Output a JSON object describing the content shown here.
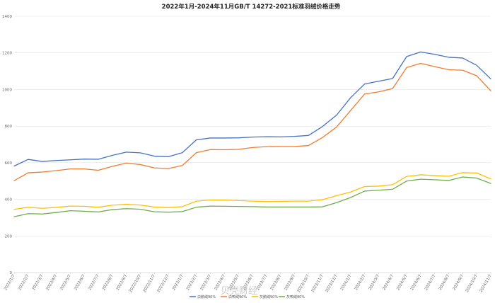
{
  "chart_data": {
    "type": "line",
    "title": "2022年1月-2024年11月GB/T 14272-2021标准羽绒价格走势",
    "ylim": [
      0,
      1400
    ],
    "yticks": [
      0,
      200,
      400,
      600,
      800,
      1000,
      1200,
      1400
    ],
    "grid": "horizontal",
    "legend_position": "bottom",
    "x": [
      "2022/1/7",
      "2022/2/7",
      "2022/3/7",
      "2022/4/7",
      "2022/5/7",
      "2022/6/7",
      "2022/7/7",
      "2022/8/7",
      "2022/9/7",
      "2022/10/7",
      "2022/11/7",
      "2022/12/7",
      "2023/1/7",
      "2023/2/7",
      "2023/3/7",
      "2023/4/7",
      "2023/5/7",
      "2023/6/7",
      "2023/7/7",
      "2023/8/7",
      "2023/9/7",
      "2023/10/7",
      "2023/11/7",
      "2023/12/7",
      "2024/1/7",
      "2024/2/7",
      "2024/3/7",
      "2024/4/7",
      "2024/5/7",
      "2024/6/7",
      "2024/7/7",
      "2024/8/7",
      "2024/9/7",
      "2024/10/7",
      "2024/11/7"
    ],
    "series": [
      {
        "name": "白鹅绒90%",
        "color": "#4472c4",
        "values": [
          582,
          618,
          607,
          612,
          616,
          620,
          619,
          640,
          658,
          654,
          636,
          633,
          655,
          725,
          735,
          735,
          736,
          740,
          742,
          741,
          744,
          749,
          798,
          860,
          955,
          1030,
          1045,
          1060,
          1180,
          1205,
          1192,
          1176,
          1172,
          1132,
          1058
        ]
      },
      {
        "name": "白鸭绒90%",
        "color": "#ed7d31",
        "values": [
          502,
          545,
          549,
          557,
          566,
          566,
          559,
          580,
          598,
          590,
          572,
          568,
          585,
          655,
          672,
          671,
          673,
          683,
          688,
          689,
          689,
          694,
          738,
          795,
          885,
          975,
          987,
          1005,
          1120,
          1143,
          1125,
          1108,
          1105,
          1075,
          993
        ]
      },
      {
        "name": "灰鹅绒90%",
        "color": "#ffc000",
        "values": [
          345,
          357,
          351,
          356,
          363,
          362,
          357,
          368,
          373,
          369,
          358,
          355,
          360,
          390,
          396,
          396,
          393,
          390,
          388,
          389,
          390,
          390,
          398,
          420,
          440,
          470,
          472,
          480,
          525,
          534,
          530,
          526,
          546,
          544,
          512
        ]
      },
      {
        "name": "灰鸭绒90%",
        "color": "#70ad47",
        "values": [
          305,
          322,
          320,
          328,
          338,
          335,
          331,
          344,
          349,
          346,
          332,
          330,
          333,
          357,
          363,
          362,
          361,
          360,
          358,
          358,
          358,
          358,
          359,
          382,
          410,
          445,
          450,
          455,
          500,
          510,
          507,
          503,
          522,
          516,
          487
        ]
      }
    ]
  },
  "watermark": "贝壳财经"
}
